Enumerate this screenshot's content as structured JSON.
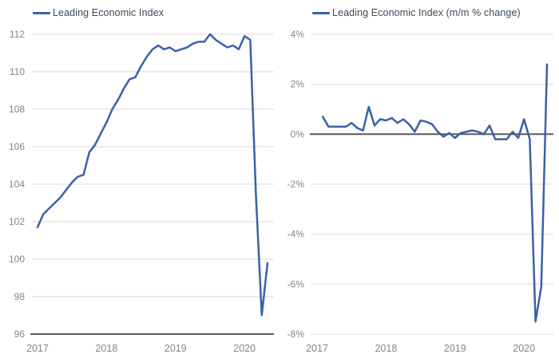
{
  "page": {
    "background": "#ffffff"
  },
  "colors": {
    "line": "#3a62a8",
    "grid": "#d9d9d9",
    "axis_dark": "#595959",
    "tick_text": "#7d8790",
    "legend_text": "#3a4a5a"
  },
  "chart_data": [
    {
      "type": "line",
      "title": "Leading Economic Index",
      "legend": "Leading Economic Index",
      "legend_position": "top-left",
      "grid": "horizontal",
      "x_start": "2017-01",
      "x_interval": "month",
      "x_tick_labels": [
        "2017",
        "2018",
        "2019",
        "2020"
      ],
      "x_tick_month_index": [
        0,
        12,
        24,
        36
      ],
      "ylim": [
        96,
        112
      ],
      "y_tick_values": [
        112,
        110,
        108,
        106,
        104,
        102,
        100,
        98,
        96
      ],
      "y_tick_labels": [
        "112",
        "110",
        "108",
        "106",
        "104",
        "102",
        "100",
        "98",
        "96"
      ],
      "emphasized_y": 96,
      "start_month_index": 0,
      "values": [
        101.7,
        102.4,
        102.7,
        103.0,
        103.3,
        103.7,
        104.1,
        104.4,
        104.5,
        105.7,
        106.1,
        106.7,
        107.3,
        108.0,
        108.5,
        109.1,
        109.6,
        109.7,
        110.3,
        110.8,
        111.2,
        111.4,
        111.2,
        111.3,
        111.1,
        111.2,
        111.3,
        111.5,
        111.6,
        111.6,
        112.0,
        111.7,
        111.5,
        111.3,
        111.4,
        111.2,
        111.9,
        111.7,
        103.3,
        97.0,
        99.8
      ]
    },
    {
      "type": "line",
      "title": "Leading Economic Index (m/m % change)",
      "legend": "Leading Economic Index (m/m % change)",
      "legend_position": "top-left",
      "grid": "horizontal",
      "x_start": "2017-02",
      "x_interval": "month",
      "x_tick_labels": [
        "2017",
        "2018",
        "2019",
        "2020"
      ],
      "x_tick_month_index": [
        0,
        12,
        24,
        36
      ],
      "ylim": [
        -8,
        4
      ],
      "y_tick_values": [
        4,
        2,
        0,
        -2,
        -4,
        -6,
        -8
      ],
      "y_tick_labels": [
        "4%",
        "2%",
        "0%",
        "-2%",
        "-4%",
        "-6%",
        "-8%"
      ],
      "emphasized_y": 0,
      "start_month_index": 1,
      "values": [
        0.7,
        0.3,
        0.3,
        0.3,
        0.3,
        0.45,
        0.25,
        0.15,
        1.1,
        0.35,
        0.6,
        0.55,
        0.65,
        0.45,
        0.6,
        0.4,
        0.1,
        0.55,
        0.5,
        0.4,
        0.1,
        -0.1,
        0.05,
        -0.15,
        0.05,
        0.1,
        0.15,
        0.1,
        0.0,
        0.35,
        -0.2,
        -0.2,
        -0.2,
        0.1,
        -0.15,
        0.6,
        -0.2,
        -7.5,
        -6.1,
        2.8
      ]
    }
  ]
}
